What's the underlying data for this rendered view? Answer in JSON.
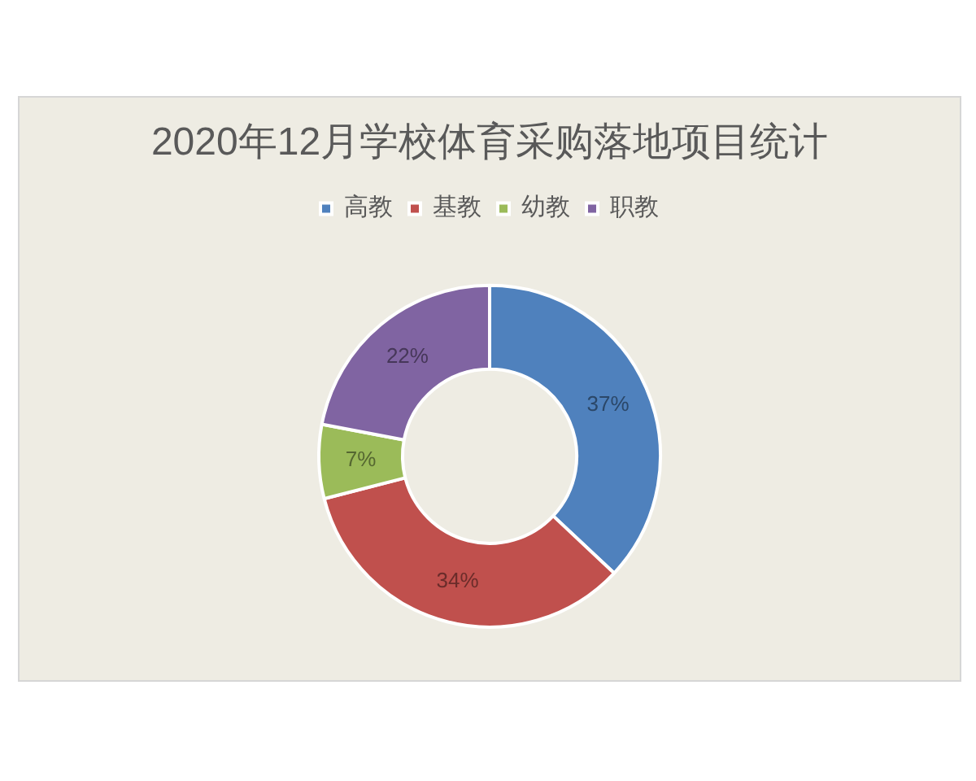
{
  "chart_data": {
    "type": "donut",
    "title": "2020年12月学校体育采购落地项目统计",
    "categories": [
      "高教",
      "基教",
      "幼教",
      "职教"
    ],
    "values": [
      37,
      34,
      7,
      22
    ],
    "colors": [
      "#4f81bd",
      "#c0504d",
      "#9bbb59",
      "#8064a2"
    ],
    "value_labels": [
      "37%",
      "34%",
      "7%",
      "22%"
    ],
    "legend": "top"
  }
}
